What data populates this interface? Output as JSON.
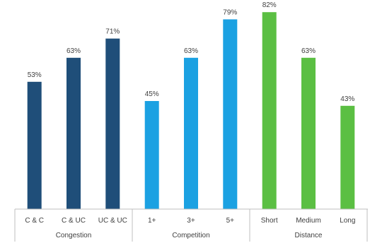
{
  "chart_data": {
    "type": "bar",
    "ylim": [
      0,
      100
    ],
    "value_suffix": "%",
    "groups": [
      {
        "name": "Congestion",
        "color": "#1f4e79",
        "categories": [
          "C & C",
          "C & UC",
          "UC & UC"
        ],
        "values": [
          53,
          63,
          71
        ],
        "labels": [
          "53%",
          "63%",
          "71%"
        ]
      },
      {
        "name": "Competition",
        "color": "#1ba1e2",
        "categories": [
          "1+",
          "3+",
          "5+"
        ],
        "values": [
          45,
          63,
          79
        ],
        "labels": [
          "45%",
          "63%",
          "79%"
        ]
      },
      {
        "name": "Distance",
        "color": "#5bbf43",
        "categories": [
          "Short",
          "Medium",
          "Long"
        ],
        "values": [
          82,
          63,
          43
        ],
        "labels": [
          "82%",
          "63%",
          "43%"
        ]
      }
    ]
  }
}
